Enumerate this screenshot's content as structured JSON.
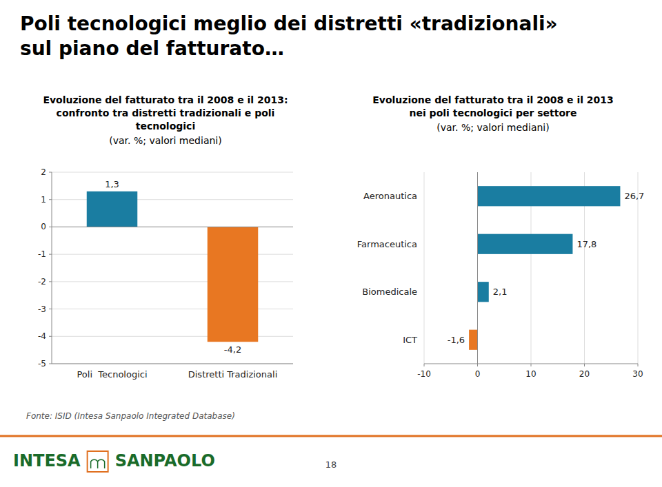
{
  "title": "Poli tecnologici meglio dei distretti «tradizionali»\nsul piano del fatturato…",
  "footer": "Fonte: ISID (Intesa Sanpaolo Integrated Database)",
  "page_number": "18",
  "logo": [
    "INTESA",
    "SANPAOLO"
  ],
  "chart_data": [
    {
      "type": "bar",
      "title": "Evoluzione del fatturato tra il 2008 e il 2013:\nconfronto tra distretti tradizionali e poli\ntecnologici",
      "subtitle": "(var. %; valori mediani)",
      "categories": [
        "Poli  Tecnologici",
        "Distretti Tradizionali"
      ],
      "values": [
        1.3,
        -4.2
      ],
      "value_labels": [
        "1,3",
        "-4,2"
      ],
      "colors": [
        "#1a7da1",
        "#e87722"
      ],
      "ylim": [
        -5,
        2
      ],
      "yticks": [
        -5,
        -4,
        -3,
        -2,
        -1,
        0,
        1,
        2
      ],
      "grid": true,
      "data_labels": true
    },
    {
      "type": "bar",
      "orientation": "horizontal",
      "title": "Evoluzione del fatturato tra il 2008 e il 2013\nnei poli tecnologici per settore",
      "subtitle": "(var. %; valori mediani)",
      "categories": [
        "Aeronautica",
        "Farmaceutica",
        "Biomedicale",
        "ICT"
      ],
      "values": [
        26.7,
        17.8,
        2.1,
        -1.6
      ],
      "value_labels": [
        "26,7",
        "17,8",
        "2,1",
        "-1,6"
      ],
      "colors": [
        "#1a7da1",
        "#1a7da1",
        "#1a7da1",
        "#e87722"
      ],
      "xlim": [
        -10,
        30
      ],
      "xticks": [
        -10,
        0,
        10,
        20,
        30
      ],
      "grid": true,
      "data_labels": true
    }
  ]
}
